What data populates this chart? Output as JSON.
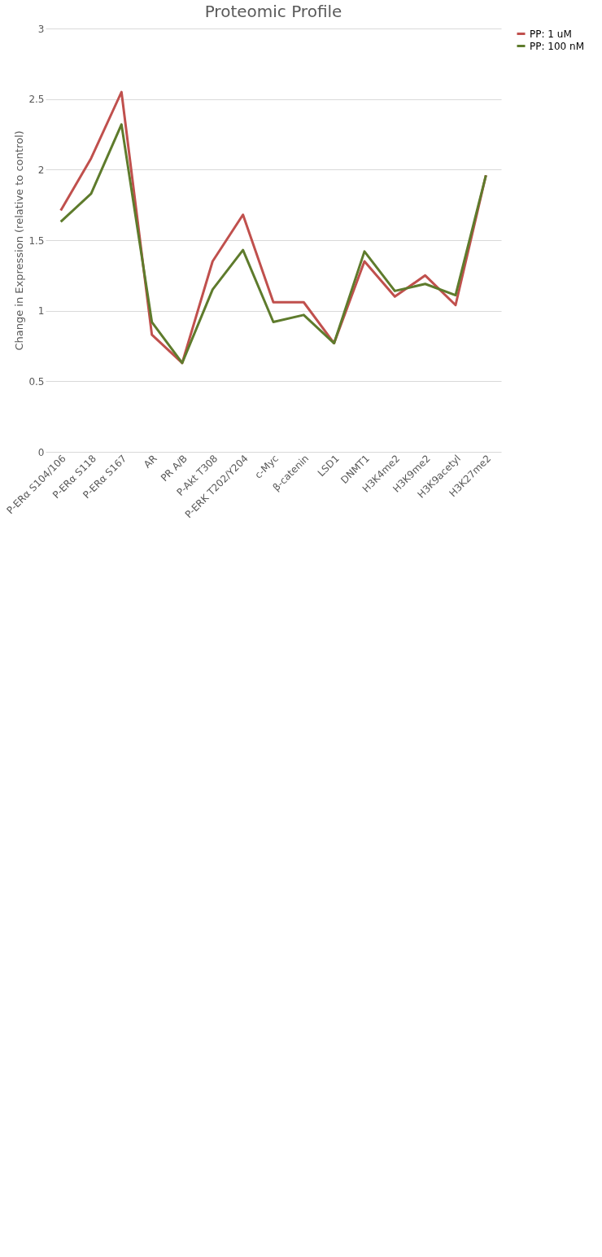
{
  "chart_data": {
    "type": "line",
    "title": "Proteomic Profile",
    "ylabel": "Change in Expression  (relative to control)",
    "categories": [
      "P-ERα S104/106",
      "P-ERα S118",
      "P-ERα S167",
      "AR",
      "PR A/B",
      "P-Akt T308",
      "P-ERK T202/Y204",
      "c-Myc",
      "β-catenin",
      "LSD1",
      "DNMT1",
      "H3K4me2",
      "H3K9me2",
      "H3K9acetyl",
      "H3K27me2"
    ],
    "series": [
      {
        "name": "PP:  1 uM",
        "color": "#c0504d",
        "values": [
          1.71,
          2.08,
          2.55,
          0.83,
          0.63,
          1.35,
          1.68,
          1.06,
          1.06,
          0.77,
          1.35,
          1.1,
          1.25,
          1.04,
          1.96
        ]
      },
      {
        "name": "PP: 100 nM",
        "color": "#5e7b2c",
        "values": [
          1.63,
          1.83,
          2.32,
          0.92,
          0.63,
          1.15,
          1.43,
          0.92,
          0.97,
          0.77,
          1.42,
          1.14,
          1.19,
          1.11,
          1.96
        ]
      }
    ],
    "ylim": [
      0,
      3
    ],
    "yticks": [
      0,
      0.5,
      1,
      1.5,
      2,
      2.5,
      3
    ],
    "grid": "y",
    "legend": "right",
    "marker": "none",
    "line_style": "solid"
  }
}
